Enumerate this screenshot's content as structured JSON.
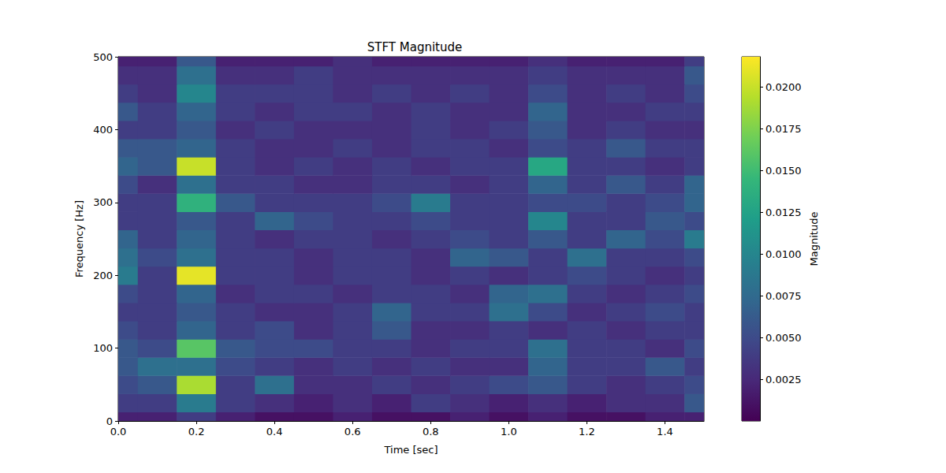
{
  "chart_data": {
    "type": "heatmap",
    "title": "STFT Magnitude",
    "x_label": "Time [sec]",
    "y_label": "Frequency [Hz]",
    "xlim": [
      0,
      1.5
    ],
    "xticks": [
      {
        "value": 0,
        "label": "0.0"
      },
      0.2,
      0.4,
      0.6,
      0.8,
      {
        "value": 1,
        "label": "1.0"
      },
      1.2,
      1.4
    ],
    "ylim": [
      0,
      500
    ],
    "yticks": [
      0,
      100,
      200,
      300,
      400,
      500
    ],
    "times": [
      0,
      0.1,
      0.2,
      0.3,
      0.4,
      0.5,
      0.6,
      0.7,
      0.8,
      0.9,
      1.0,
      1.1,
      1.2,
      1.3,
      1.4,
      1.5
    ],
    "frequencies": [
      0,
      25,
      50,
      75,
      100,
      125,
      150,
      175,
      200,
      225,
      250,
      275,
      300,
      325,
      350,
      375,
      400,
      425,
      450,
      475,
      500
    ],
    "magnitude": [
      [
        0.002,
        0.002,
        0.004,
        0.002,
        0.001,
        0.001,
        0.002,
        0.001,
        0.001,
        0.002,
        0.001,
        0.002,
        0.001,
        0.001,
        0.002,
        0.002
      ],
      [
        0.004,
        0.004,
        0.009,
        0.004,
        0.003,
        0.002,
        0.003,
        0.002,
        0.004,
        0.003,
        0.002,
        0.003,
        0.002,
        0.003,
        0.003,
        0.006
      ],
      [
        0.005,
        0.006,
        0.019,
        0.004,
        0.008,
        0.003,
        0.003,
        0.004,
        0.003,
        0.004,
        0.005,
        0.006,
        0.004,
        0.003,
        0.004,
        0.005
      ],
      [
        0.006,
        0.008,
        0.008,
        0.005,
        0.004,
        0.003,
        0.004,
        0.003,
        0.004,
        0.003,
        0.003,
        0.007,
        0.004,
        0.004,
        0.006,
        0.004
      ],
      [
        0.006,
        0.005,
        0.016,
        0.006,
        0.005,
        0.005,
        0.004,
        0.004,
        0.003,
        0.004,
        0.004,
        0.008,
        0.004,
        0.004,
        0.003,
        0.005
      ],
      [
        0.005,
        0.004,
        0.007,
        0.004,
        0.005,
        0.003,
        0.004,
        0.006,
        0.003,
        0.003,
        0.004,
        0.003,
        0.004,
        0.003,
        0.004,
        0.004
      ],
      [
        0.004,
        0.004,
        0.006,
        0.004,
        0.003,
        0.003,
        0.004,
        0.007,
        0.004,
        0.004,
        0.008,
        0.005,
        0.003,
        0.004,
        0.005,
        0.004
      ],
      [
        0.005,
        0.004,
        0.007,
        0.003,
        0.004,
        0.004,
        0.003,
        0.004,
        0.004,
        0.003,
        0.007,
        0.008,
        0.004,
        0.003,
        0.004,
        0.005
      ],
      [
        0.009,
        0.004,
        0.021,
        0.004,
        0.004,
        0.003,
        0.004,
        0.004,
        0.003,
        0.004,
        0.003,
        0.004,
        0.005,
        0.004,
        0.003,
        0.004
      ],
      [
        0.008,
        0.005,
        0.008,
        0.004,
        0.004,
        0.003,
        0.004,
        0.004,
        0.003,
        0.007,
        0.006,
        0.004,
        0.008,
        0.004,
        0.004,
        0.005
      ],
      [
        0.007,
        0.004,
        0.007,
        0.004,
        0.003,
        0.004,
        0.004,
        0.003,
        0.004,
        0.005,
        0.004,
        0.006,
        0.004,
        0.007,
        0.005,
        0.009
      ],
      [
        0.004,
        0.004,
        0.006,
        0.004,
        0.007,
        0.005,
        0.004,
        0.004,
        0.005,
        0.004,
        0.004,
        0.01,
        0.004,
        0.004,
        0.006,
        0.005
      ],
      [
        0.004,
        0.004,
        0.014,
        0.006,
        0.004,
        0.004,
        0.004,
        0.005,
        0.009,
        0.004,
        0.004,
        0.005,
        0.005,
        0.004,
        0.005,
        0.007
      ],
      [
        0.005,
        0.003,
        0.008,
        0.004,
        0.004,
        0.003,
        0.003,
        0.004,
        0.004,
        0.003,
        0.004,
        0.007,
        0.004,
        0.006,
        0.004,
        0.007
      ],
      [
        0.007,
        0.006,
        0.02,
        0.004,
        0.003,
        0.004,
        0.003,
        0.004,
        0.003,
        0.004,
        0.004,
        0.013,
        0.004,
        0.004,
        0.003,
        0.004
      ],
      [
        0.006,
        0.006,
        0.007,
        0.004,
        0.003,
        0.003,
        0.004,
        0.003,
        0.004,
        0.004,
        0.003,
        0.005,
        0.004,
        0.006,
        0.004,
        0.004
      ],
      [
        0.004,
        0.004,
        0.006,
        0.003,
        0.004,
        0.003,
        0.003,
        0.003,
        0.004,
        0.003,
        0.004,
        0.006,
        0.003,
        0.004,
        0.003,
        0.003
      ],
      [
        0.006,
        0.004,
        0.007,
        0.004,
        0.003,
        0.004,
        0.004,
        0.003,
        0.004,
        0.003,
        0.003,
        0.007,
        0.003,
        0.003,
        0.004,
        0.004
      ],
      [
        0.004,
        0.003,
        0.01,
        0.004,
        0.004,
        0.004,
        0.003,
        0.004,
        0.003,
        0.004,
        0.003,
        0.005,
        0.003,
        0.004,
        0.003,
        0.005
      ],
      [
        0.003,
        0.003,
        0.008,
        0.003,
        0.003,
        0.004,
        0.003,
        0.003,
        0.003,
        0.003,
        0.003,
        0.004,
        0.003,
        0.003,
        0.003,
        0.006
      ],
      [
        0.002,
        0.002,
        0.006,
        0.002,
        0.002,
        0.002,
        0.003,
        0.002,
        0.002,
        0.002,
        0.002,
        0.003,
        0.002,
        0.002,
        0.002,
        0.004
      ]
    ],
    "colorbar": {
      "label": "Magnitude",
      "range": [
        0,
        0.0218
      ],
      "ticks": [
        0.0025,
        {
          "value": 0.005,
          "label": "0.0050"
        },
        0.0075,
        {
          "value": 0.01,
          "label": "0.0100"
        },
        0.0125,
        {
          "value": 0.015,
          "label": "0.0150"
        },
        0.0175,
        {
          "value": 0.02,
          "label": "0.0200"
        }
      ]
    }
  }
}
